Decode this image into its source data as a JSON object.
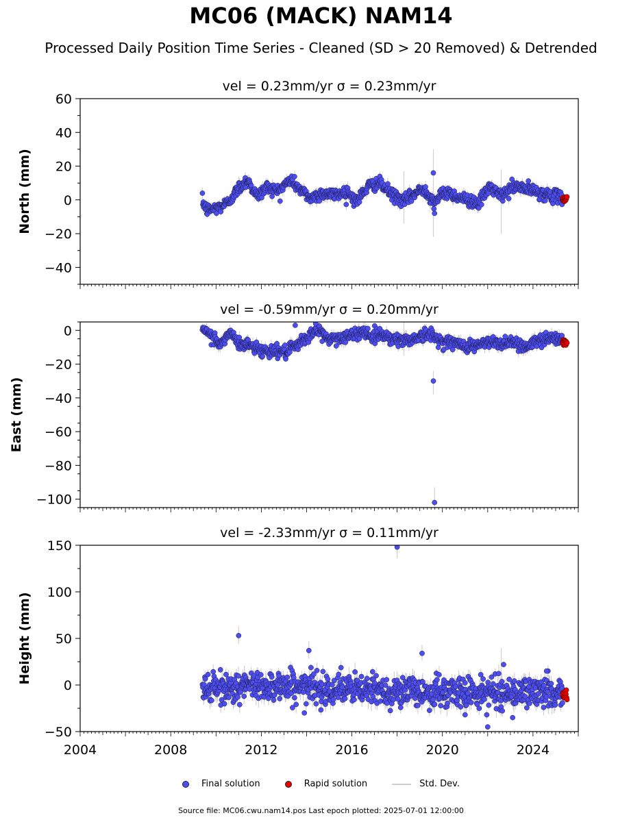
{
  "title": "MC06 (MACK) NAM14",
  "subtitle": "Processed Daily Position Time Series - Cleaned (SD > 20 Removed) & Detrended",
  "legend": {
    "final": "Final solution",
    "rapid": "Rapid solution",
    "std": "Std. Dev."
  },
  "footer": "Source file: MC06.cwu.nam14.pos  Last epoch plotted: 2025-07-01 12:00:00",
  "colors": {
    "final": "#4d4df2",
    "rapid": "#e60000",
    "std": "#bdbdbd"
  },
  "chart_data": [
    {
      "type": "scatter",
      "panel": "north",
      "title": "vel = 0.23mm/yr   σ = 0.23mm/yr",
      "ylabel": "North (mm)",
      "xlim": [
        2004.0,
        2026.0
      ],
      "ylim": [
        -50,
        60
      ],
      "yticks": [
        -40,
        -20,
        0,
        20,
        40,
        60
      ],
      "xticks": [],
      "data_start": 2009.4,
      "data_end": 2025.5,
      "rapid_start": 2025.3,
      "trend_points": [
        [
          2009.4,
          -1
        ],
        [
          2009.6,
          -6
        ],
        [
          2010.0,
          -5
        ],
        [
          2010.5,
          -2
        ],
        [
          2011.0,
          7
        ],
        [
          2011.4,
          12
        ],
        [
          2011.8,
          2
        ],
        [
          2012.3,
          8
        ],
        [
          2012.7,
          5
        ],
        [
          2013.3,
          12
        ],
        [
          2013.8,
          5
        ],
        [
          2014.2,
          1
        ],
        [
          2014.7,
          4
        ],
        [
          2015.2,
          3
        ],
        [
          2015.8,
          5
        ],
        [
          2016.2,
          -1
        ],
        [
          2016.7,
          8
        ],
        [
          2017.2,
          10
        ],
        [
          2017.7,
          4
        ],
        [
          2018.3,
          -1
        ],
        [
          2018.7,
          3
        ],
        [
          2019.2,
          7
        ],
        [
          2019.6,
          -1
        ],
        [
          2020.2,
          5
        ],
        [
          2020.6,
          2
        ],
        [
          2021.1,
          0
        ],
        [
          2021.6,
          -2
        ],
        [
          2022.1,
          8
        ],
        [
          2022.6,
          2
        ],
        [
          2023.1,
          8
        ],
        [
          2023.6,
          7
        ],
        [
          2024.1,
          5
        ],
        [
          2024.6,
          3
        ],
        [
          2025.5,
          1
        ]
      ],
      "noise": 1.8,
      "err": 2.5,
      "outliers": [
        [
          2019.6,
          16
        ],
        [
          2019.65,
          -8
        ]
      ],
      "err_spikes": [
        [
          2019.6,
          30,
          -22
        ],
        [
          2022.6,
          18,
          -20
        ],
        [
          2018.3,
          17,
          -14
        ]
      ],
      "rapid_range": [
        -1,
        2
      ]
    },
    {
      "type": "scatter",
      "panel": "east",
      "title": "vel = -0.59mm/yr   σ = 0.20mm/yr",
      "ylabel": "East (mm)",
      "xlim": [
        2004.0,
        2026.0
      ],
      "ylim": [
        -105,
        5
      ],
      "yticks": [
        -100,
        -80,
        -60,
        -40,
        -20,
        0
      ],
      "xticks": [],
      "data_start": 2009.4,
      "data_end": 2025.5,
      "rapid_start": 2025.3,
      "trend_points": [
        [
          2009.4,
          0
        ],
        [
          2009.9,
          -4
        ],
        [
          2010.2,
          -9
        ],
        [
          2010.6,
          -1
        ],
        [
          2011.0,
          -8
        ],
        [
          2011.6,
          -9
        ],
        [
          2012.0,
          -12
        ],
        [
          2012.6,
          -12
        ],
        [
          2013.1,
          -13
        ],
        [
          2013.6,
          -9
        ],
        [
          2014.1,
          -3
        ],
        [
          2014.5,
          0
        ],
        [
          2015.0,
          -5
        ],
        [
          2015.6,
          -4
        ],
        [
          2016.1,
          -3
        ],
        [
          2016.5,
          0
        ],
        [
          2016.9,
          -4
        ],
        [
          2017.3,
          -2
        ],
        [
          2017.8,
          -5
        ],
        [
          2018.4,
          -6
        ],
        [
          2018.9,
          -4
        ],
        [
          2019.4,
          -2
        ],
        [
          2019.9,
          -6
        ],
        [
          2020.4,
          -7
        ],
        [
          2020.9,
          -9
        ],
        [
          2021.5,
          -9
        ],
        [
          2022.0,
          -7
        ],
        [
          2022.6,
          -8
        ],
        [
          2023.1,
          -6
        ],
        [
          2023.6,
          -10
        ],
        [
          2024.1,
          -7
        ],
        [
          2024.6,
          -4
        ],
        [
          2025.5,
          -6
        ]
      ],
      "noise": 1.8,
      "err": 2.5,
      "outliers": [
        [
          2019.6,
          -30
        ],
        [
          2019.65,
          -102
        ],
        [
          2013.5,
          3
        ],
        [
          2014.4,
          4
        ]
      ],
      "err_spikes": [
        [
          2019.6,
          -24,
          -38
        ],
        [
          2019.65,
          -93,
          -105
        ],
        [
          2018.3,
          5,
          -15
        ]
      ],
      "rapid_range": [
        -9,
        -5
      ]
    },
    {
      "type": "scatter",
      "panel": "height",
      "title": "vel = -2.33mm/yr   σ = 0.11mm/yr",
      "ylabel": "Height (mm)",
      "xlim": [
        2004.0,
        2026.0
      ],
      "ylim": [
        -50,
        150
      ],
      "yticks": [
        -50,
        0,
        50,
        100,
        150
      ],
      "xticks": [
        2004,
        2008,
        2012,
        2016,
        2020,
        2024
      ],
      "data_start": 2009.4,
      "data_end": 2025.5,
      "rapid_start": 2025.3,
      "trend_points": [
        [
          2009.4,
          -5
        ],
        [
          2012.5,
          0
        ],
        [
          2016.0,
          -5
        ],
        [
          2020.0,
          -8
        ],
        [
          2025.5,
          -8
        ]
      ],
      "noise": 8,
      "err": 7,
      "outliers": [
        [
          2011.0,
          53
        ],
        [
          2014.1,
          37
        ],
        [
          2018.0,
          148
        ],
        [
          2019.1,
          34
        ],
        [
          2013.9,
          -30
        ],
        [
          2021.0,
          -32
        ],
        [
          2022.0,
          -45
        ],
        [
          2022.7,
          22
        ],
        [
          2023.1,
          -35
        ],
        [
          2024.6,
          15
        ]
      ],
      "err_spikes": [
        [
          2011.0,
          63,
          44
        ],
        [
          2014.1,
          47,
          28
        ],
        [
          2018.0,
          160,
          136
        ],
        [
          2019.1,
          43,
          26
        ],
        [
          2022.6,
          40,
          -25
        ]
      ],
      "rapid_range": [
        -16,
        -4
      ]
    }
  ]
}
